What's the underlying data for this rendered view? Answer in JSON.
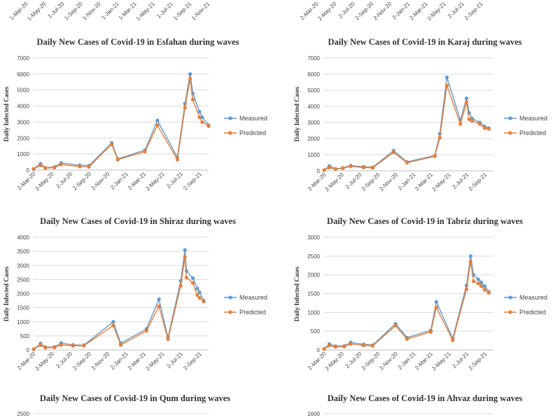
{
  "colors": {
    "measured": "#5b9bd5",
    "predicted": "#ed7d31",
    "grid": "#d9d9d9",
    "axis": "#bfbfbf"
  },
  "top_partial": {
    "left_ticks": [
      "1-Mar-20",
      "1-May-20",
      "1-Jul-20",
      "1-Sep-20",
      "1-Nov-20",
      "1-Jan-21",
      "1-Mar-21",
      "1-May-21",
      "1-Jul-21",
      "1-Sep-21",
      "1-Nov-21"
    ],
    "right_ticks": [
      "2-Mar-20",
      "2-May-20",
      "2-Jul-20",
      "2-Sep-20",
      "2-Nov-20",
      "2-Jan-21",
      "2-Mar-21",
      "2-May-21",
      "2-Jul-21",
      "2-Sep-21"
    ]
  },
  "chart_data": [
    {
      "type": "line",
      "title": "Daily New Cases of Covid-19 in Esfahan during waves",
      "ylabel": "Daily Infected Cases",
      "ylim": [
        0,
        7000
      ],
      "yticks": [
        0,
        1000,
        2000,
        3000,
        4000,
        5000,
        6000,
        7000
      ],
      "x_ticks": [
        "2-Mar-20",
        "2-May-20",
        "2-Jul-20",
        "2-Sep-20",
        "2-Nov-20",
        "2-Jan-21",
        "2-Mar-21",
        "2-May-21",
        "2-Jul-21",
        "2-Sep-21"
      ],
      "legend": [
        "Measured",
        "Predicted"
      ],
      "series": [
        {
          "name": "Measured",
          "x": [
            "2-Mar-20",
            "25-Mar-20",
            "10-Apr-20",
            "10-May-20",
            "1-Jun-20",
            "1-Aug-20",
            "1-Sep-20",
            "15-Nov-20",
            "5-Dec-20",
            "5-Mar-21",
            "15-Apr-21",
            "20-Jun-21",
            "15-Jul-21",
            "1-Aug-21",
            "10-Aug-21",
            "1-Sep-21",
            "10-Sep-21",
            "1-Oct-21"
          ],
          "values": [
            80,
            400,
            150,
            200,
            450,
            300,
            280,
            1700,
            700,
            1250,
            3100,
            800,
            4150,
            6000,
            4800,
            3650,
            3300,
            2800
          ]
        },
        {
          "name": "Predicted",
          "x": [
            "2-Mar-20",
            "25-Mar-20",
            "10-Apr-20",
            "10-May-20",
            "1-Jun-20",
            "1-Aug-20",
            "1-Sep-20",
            "15-Nov-20",
            "5-Dec-20",
            "5-Mar-21",
            "15-Apr-21",
            "20-Jun-21",
            "15-Jul-21",
            "1-Aug-21",
            "10-Aug-21",
            "1-Sep-21",
            "10-Sep-21",
            "1-Oct-21"
          ],
          "values": [
            60,
            300,
            120,
            150,
            350,
            220,
            200,
            1600,
            650,
            1150,
            2800,
            650,
            3900,
            5700,
            4400,
            3300,
            3000,
            2750
          ]
        }
      ]
    },
    {
      "type": "line",
      "title": "Daily New Cases of Covid-19 in Karaj during waves",
      "ylabel": "Daily Infected Cases",
      "ylim": [
        0,
        7000
      ],
      "yticks": [
        0,
        1000,
        2000,
        3000,
        4000,
        5000,
        6000,
        7000
      ],
      "x_ticks": [
        "2-Mar-20",
        "2-May-20",
        "2-Jul-20",
        "2-Sep-20",
        "2-Nov-20",
        "2-Jan-21",
        "2-Mar-21",
        "2-May-21",
        "2-Jul-21",
        "2-Sep-21"
      ],
      "legend": [
        "Measured",
        "Predicted"
      ],
      "series": [
        {
          "name": "Measured",
          "x": [
            "2-Mar-20",
            "20-Mar-20",
            "10-Apr-20",
            "5-May-20",
            "1-Jun-20",
            "15-Jul-20",
            "15-Aug-20",
            "25-Oct-20",
            "10-Dec-20",
            "15-Mar-21",
            "1-Apr-21",
            "25-Apr-21",
            "10-Jun-21",
            "1-Jul-21",
            "10-Jul-21",
            "20-Jul-21",
            "15-Aug-21",
            "1-Sep-21",
            "15-Sep-21"
          ],
          "values": [
            50,
            300,
            120,
            180,
            320,
            250,
            220,
            1250,
            550,
            950,
            2300,
            5800,
            3150,
            4500,
            3600,
            3250,
            3000,
            2750,
            2650
          ]
        },
        {
          "name": "Predicted",
          "x": [
            "2-Mar-20",
            "20-Mar-20",
            "10-Apr-20",
            "5-May-20",
            "1-Jun-20",
            "15-Jul-20",
            "15-Aug-20",
            "25-Oct-20",
            "10-Dec-20",
            "15-Mar-21",
            "1-Apr-21",
            "25-Apr-21",
            "10-Jun-21",
            "1-Jul-21",
            "10-Jul-21",
            "20-Jul-21",
            "15-Aug-21",
            "1-Sep-21",
            "15-Sep-21"
          ],
          "values": [
            40,
            200,
            100,
            150,
            280,
            200,
            180,
            1150,
            500,
            900,
            2050,
            5300,
            2900,
            4250,
            3200,
            3100,
            2900,
            2650,
            2600
          ]
        }
      ]
    },
    {
      "type": "line",
      "title": "Daily New Cases of Covid-19 in Shiraz during waves",
      "ylabel": "Daily Infected Cases",
      "ylim": [
        0,
        4000
      ],
      "yticks": [
        0,
        500,
        1000,
        1500,
        2000,
        2500,
        3000,
        3500,
        4000
      ],
      "x_ticks": [
        "2-Mar-20",
        "2-May-20",
        "2-Jul-20",
        "2-Sep-20",
        "2-Nov-20",
        "2-Jan-21",
        "2-Mar-21",
        "2-May-21",
        "2-Jul-21",
        "2-Sep-21"
      ],
      "legend": [
        "Measured",
        "Predicted"
      ],
      "series": [
        {
          "name": "Measured",
          "x": [
            "2-Mar-20",
            "25-Mar-20",
            "10-Apr-20",
            "10-May-20",
            "1-Jun-20",
            "10-Jul-20",
            "15-Aug-20",
            "20-Nov-20",
            "15-Dec-20",
            "10-Mar-21",
            "20-Apr-21",
            "20-May-21",
            "1-Jul-21",
            "15-Jul-21",
            "20-Jul-21",
            "10-Aug-21",
            "25-Aug-21",
            "1-Sep-21",
            "15-Sep-21"
          ],
          "values": [
            30,
            230,
            100,
            110,
            250,
            180,
            170,
            1000,
            240,
            750,
            1800,
            450,
            2450,
            3550,
            2800,
            2550,
            2180,
            2050,
            1750
          ]
        },
        {
          "name": "Predicted",
          "x": [
            "2-Mar-20",
            "25-Mar-20",
            "10-Apr-20",
            "10-May-20",
            "1-Jun-20",
            "10-Jul-20",
            "15-Aug-20",
            "20-Nov-20",
            "15-Dec-20",
            "10-Mar-21",
            "20-Apr-21",
            "20-May-21",
            "1-Jul-21",
            "15-Jul-21",
            "20-Jul-21",
            "10-Aug-21",
            "25-Aug-21",
            "1-Sep-21",
            "15-Sep-21"
          ],
          "values": [
            20,
            170,
            80,
            90,
            180,
            150,
            150,
            870,
            180,
            680,
            1550,
            380,
            2280,
            3300,
            2570,
            2380,
            1950,
            1850,
            1720
          ]
        }
      ]
    },
    {
      "type": "line",
      "title": "Daily New Cases of Covid-19 in Tabriz during waves",
      "ylabel": "Daily Infected Cases",
      "ylim": [
        0,
        3000
      ],
      "yticks": [
        0,
        500,
        1000,
        1500,
        2000,
        2500,
        3000
      ],
      "x_ticks": [
        "2-Mar-20",
        "2-May-20",
        "2-Jul-20",
        "2-Sep-20",
        "2-Nov-20",
        "2-Jan-21",
        "2-Mar-21",
        "2-May-21",
        "2-Jul-21",
        "2-Sep-21"
      ],
      "legend": [
        "Measured",
        "Predicted"
      ],
      "series": [
        {
          "name": "Measured",
          "x": [
            "2-Mar-20",
            "20-Mar-20",
            "10-Apr-20",
            "10-May-20",
            "1-Jun-20",
            "15-Jul-20",
            "15-Aug-20",
            "1-Nov-20",
            "10-Dec-20",
            "1-Mar-21",
            "20-Mar-21",
            "15-May-21",
            "1-Jul-21",
            "15-Jul-21",
            "25-Jul-21",
            "10-Aug-21",
            "20-Aug-21",
            "1-Sep-21",
            "15-Sep-21"
          ],
          "values": [
            30,
            160,
            100,
            110,
            200,
            150,
            130,
            700,
            330,
            520,
            1280,
            310,
            1720,
            2500,
            2000,
            1880,
            1800,
            1700,
            1550
          ]
        },
        {
          "name": "Predicted",
          "x": [
            "2-Mar-20",
            "20-Mar-20",
            "10-Apr-20",
            "10-May-20",
            "1-Jun-20",
            "15-Jul-20",
            "15-Aug-20",
            "1-Nov-20",
            "10-Dec-20",
            "1-Mar-21",
            "20-Mar-21",
            "15-May-21",
            "1-Jul-21",
            "15-Jul-21",
            "25-Jul-21",
            "10-Aug-21",
            "20-Aug-21",
            "1-Sep-21",
            "15-Sep-21"
          ],
          "values": [
            20,
            120,
            80,
            90,
            160,
            120,
            110,
            650,
            290,
            480,
            1130,
            260,
            1620,
            2350,
            1830,
            1770,
            1700,
            1600,
            1520
          ]
        }
      ]
    },
    {
      "type": "line",
      "title": "Daily New Cases of Covid-19 in Qum during waves",
      "ylabel": "",
      "ylim": [
        0,
        2500
      ],
      "yticks": [
        2500
      ],
      "x_ticks": [],
      "legend": [],
      "series": []
    },
    {
      "type": "line",
      "title": "Daily New Cases of Covid-19 in Ahvaz during waves",
      "ylabel": "",
      "ylim": [
        0,
        1600
      ],
      "yticks": [
        1600
      ],
      "x_ticks": [],
      "legend": [],
      "series": []
    }
  ]
}
